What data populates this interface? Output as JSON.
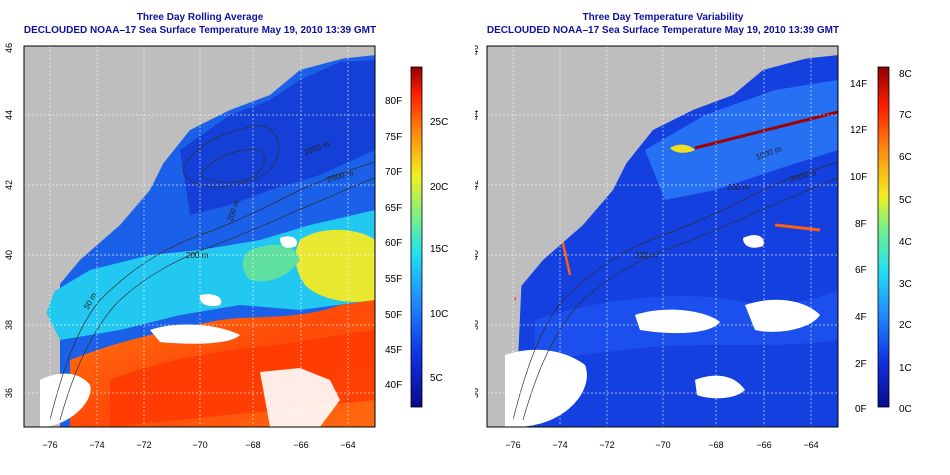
{
  "left": {
    "title": "Three Day Rolling Average",
    "subtitle": "DECLOUDED NOAA–17 Sea Surface Temperature May 19, 2010 13:39 GMT",
    "colorbar_f": [
      "40F",
      "45F",
      "50F",
      "55F",
      "60F",
      "65F",
      "70F",
      "75F",
      "80F"
    ],
    "colorbar_c": [
      "5C",
      "10C",
      "15C",
      "20C",
      "25C"
    ],
    "isobaths": [
      "50 m",
      "200 m",
      "200 m",
      "1000 m",
      "2000 m"
    ]
  },
  "right": {
    "title": "Three Day Temperature Variability",
    "subtitle": "DECLOUDED NOAA–17 Sea Surface Temperature May 19, 2010 13:39 GMT",
    "colorbar_f": [
      "0F",
      "2F",
      "4F",
      "6F",
      "8F",
      "10F",
      "12F",
      "14F"
    ],
    "colorbar_c": [
      "0C",
      "1C",
      "2C",
      "3C",
      "4C",
      "5C",
      "6C",
      "7C",
      "8C"
    ],
    "isobaths": [
      "200 m",
      "200 m",
      "1000 m",
      "2000 m"
    ]
  },
  "axes": {
    "lon_labels": [
      "−76",
      "−74",
      "−72",
      "−70",
      "−68",
      "−66",
      "−64"
    ],
    "lat_labels": [
      "36",
      "38",
      "40",
      "42",
      "44",
      "46"
    ]
  },
  "colors": {
    "land": "#bebebe",
    "title": "#1010a0",
    "grid": "#ffffff"
  }
}
